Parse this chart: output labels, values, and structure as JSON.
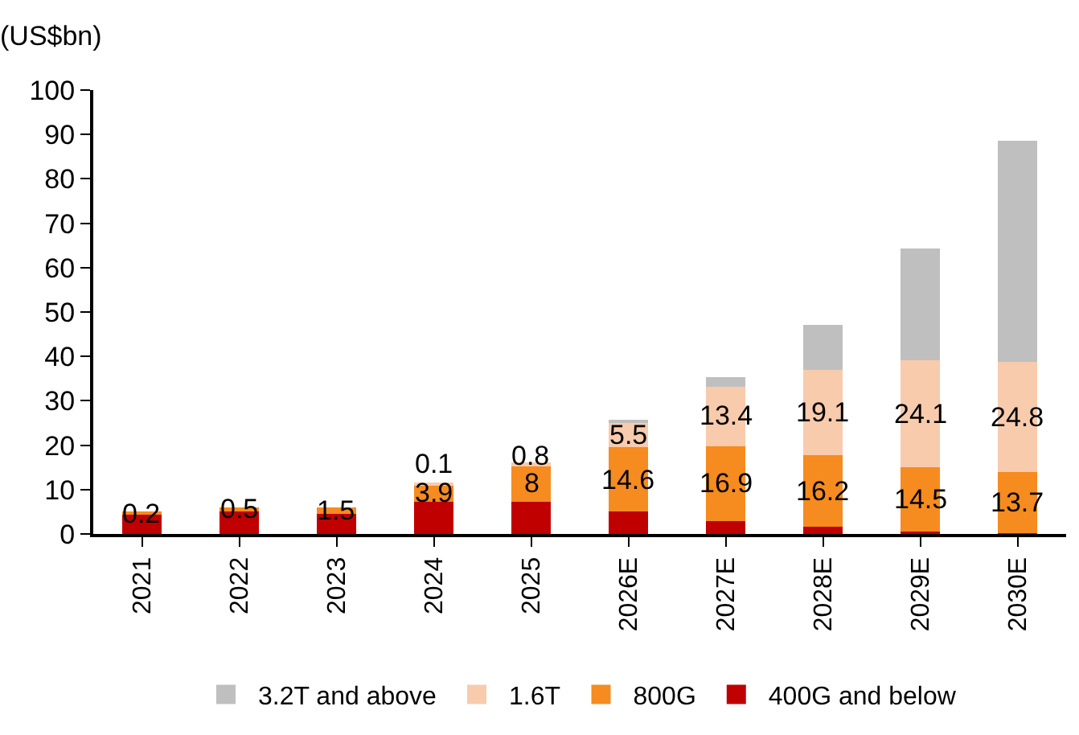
{
  "chart_data": {
    "type": "bar",
    "stacked": true,
    "ylabel": "(US$bn)",
    "categories": [
      "2021",
      "2022",
      "2023",
      "2024",
      "2025",
      "2026E",
      "2027E",
      "2028E",
      "2029E",
      "2030E"
    ],
    "series": [
      {
        "name": "400G and below",
        "color": "#c00000",
        "values": [
          4.6,
          5.4,
          4.5,
          7.3,
          7.3,
          5.0,
          2.9,
          1.6,
          0.5,
          0.2
        ]
      },
      {
        "name": "800G",
        "color": "#f68b1f",
        "values": [
          0.2,
          0.5,
          1.5,
          3.9,
          8,
          14.6,
          16.9,
          16.2,
          14.5,
          13.7
        ],
        "value_labels": [
          "0.2",
          "0.5",
          "1.5",
          "3.9",
          "8",
          "14.6",
          "16.9",
          "16.2",
          "14.5",
          "13.7"
        ]
      },
      {
        "name": "1.6T",
        "color": "#f8cbad",
        "values": [
          null,
          null,
          null,
          0.1,
          0.8,
          5.5,
          13.4,
          19.1,
          24.1,
          24.8
        ],
        "value_labels": [
          null,
          null,
          null,
          "0.1",
          "0.8",
          "5.5",
          "13.4",
          "19.1",
          "24.1",
          "24.8"
        ]
      },
      {
        "name": "3.2T and above",
        "color": "#bfbfbf",
        "values": [
          null,
          null,
          null,
          null,
          null,
          0.5,
          2.1,
          10.2,
          25.2,
          49.9
        ]
      }
    ],
    "ylim": [
      0,
      100
    ],
    "yticks": [
      0,
      10,
      20,
      30,
      40,
      50,
      60,
      70,
      80,
      90,
      100
    ],
    "grid": false,
    "legend": "bottom"
  }
}
